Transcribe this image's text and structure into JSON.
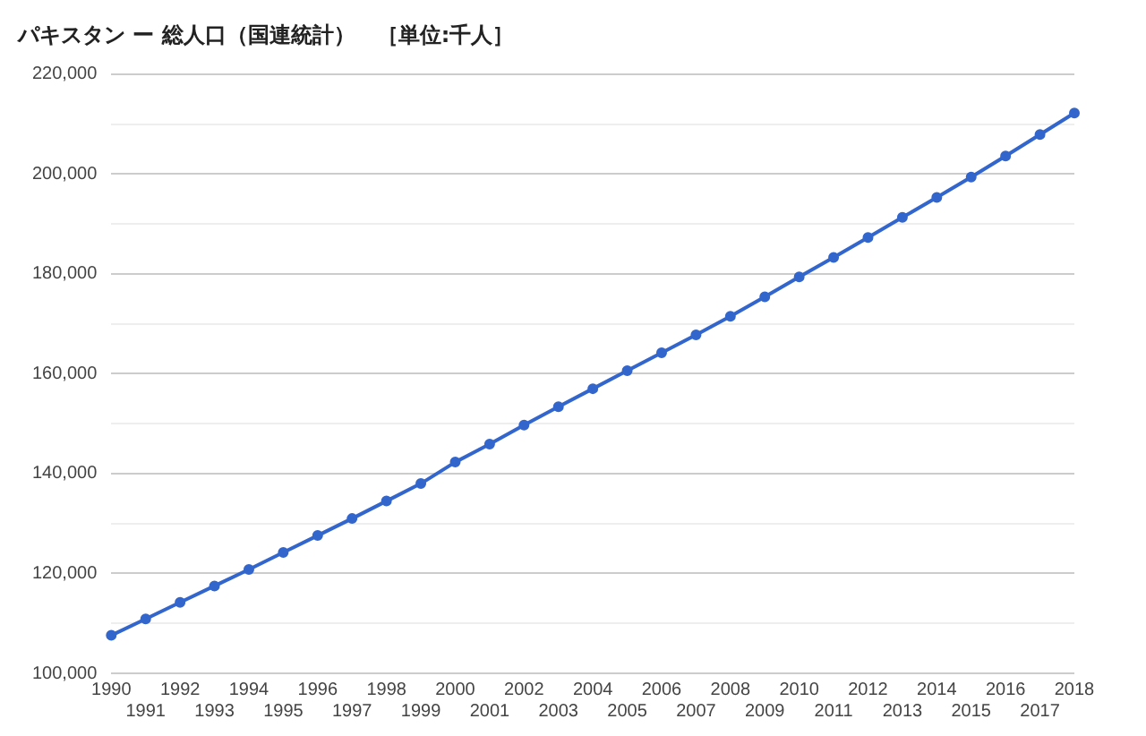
{
  "chart_data": {
    "type": "line",
    "title": "パキスタン ー 総人口（国連統計）　［単位:千人］",
    "categories": [
      "1990",
      "1991",
      "1992",
      "1993",
      "1994",
      "1995",
      "1996",
      "1997",
      "1998",
      "1999",
      "2000",
      "2001",
      "2002",
      "2003",
      "2004",
      "2005",
      "2006",
      "2007",
      "2008",
      "2009",
      "2010",
      "2011",
      "2012",
      "2013",
      "2014",
      "2015",
      "2016",
      "2017",
      "2018"
    ],
    "series": [
      {
        "color": "#3366cc",
        "values": [
          107600,
          110900,
          114200,
          117500,
          120800,
          124200,
          127600,
          131000,
          134500,
          138000,
          142300,
          145900,
          149700,
          153400,
          157000,
          160600,
          164200,
          167800,
          171500,
          175400,
          179400,
          183300,
          187300,
          191300,
          195300,
          199400,
          203600,
          207900,
          212200
        ]
      }
    ],
    "ylim": [
      100000,
      220000
    ],
    "yticks": [
      {
        "value": 100000,
        "label": "100,000"
      },
      {
        "value": 110000,
        "label": null
      },
      {
        "value": 120000,
        "label": "120,000"
      },
      {
        "value": 130000,
        "label": null
      },
      {
        "value": 140000,
        "label": "140,000"
      },
      {
        "value": 150000,
        "label": null
      },
      {
        "value": 160000,
        "label": "160,000"
      },
      {
        "value": 170000,
        "label": null
      },
      {
        "value": 180000,
        "label": "180,000"
      },
      {
        "value": 190000,
        "label": null
      },
      {
        "value": 200000,
        "label": "200,000"
      },
      {
        "value": 210000,
        "label": null
      },
      {
        "value": 220000,
        "label": "220,000"
      }
    ],
    "grid": "y",
    "legend": false,
    "marker": "circle",
    "line_style": "solid"
  }
}
